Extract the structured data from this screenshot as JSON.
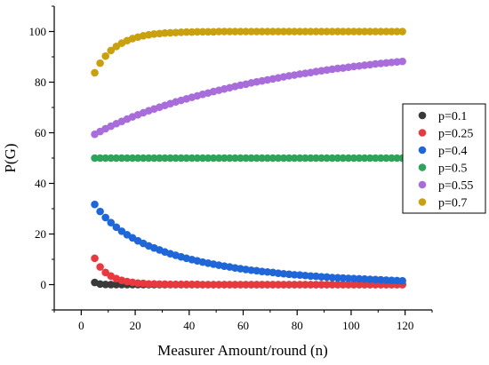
{
  "chart_data": {
    "type": "scatter",
    "title": "",
    "xlabel": "Measurer Amount/round (n)",
    "ylabel": "P(G)",
    "xlim": [
      -10,
      130
    ],
    "ylim": [
      -10,
      110
    ],
    "xticks": [
      "0",
      "20",
      "40",
      "60",
      "80",
      "100",
      "120"
    ],
    "yticks": [
      "0",
      "20",
      "40",
      "60",
      "80",
      "100"
    ],
    "legend_position": "right",
    "grid": false,
    "x_start": 5,
    "x_end": 119,
    "x_step": 2,
    "series": [
      {
        "name": "p=0.1",
        "color": "#3a3a3a",
        "values": [
          0.86,
          0.23,
          0.06,
          0.02,
          0.0,
          0.0,
          0.0,
          0.0,
          0.0,
          0.0,
          0.0,
          0.0,
          0.0,
          0.0,
          0.0,
          0.0,
          0.0,
          0.0,
          0.0,
          0.0,
          0.0,
          0.0,
          0.0,
          0.0,
          0.0,
          0.0,
          0.0,
          0.0,
          0.0,
          0.0,
          0.0,
          0.0,
          0.0,
          0.0,
          0.0,
          0.0,
          0.0,
          0.0,
          0.0,
          0.0,
          0.0,
          0.0,
          0.0,
          0.0,
          0.0,
          0.0,
          0.0,
          0.0,
          0.0,
          0.0,
          0.0,
          0.0,
          0.0,
          0.0,
          0.0,
          0.0,
          0.0,
          0.0
        ]
      },
      {
        "name": "p=0.25",
        "color": "#e8393f",
        "values": [
          10.4,
          7.0,
          4.8,
          3.4,
          2.4,
          1.7,
          1.2,
          0.9,
          0.6,
          0.5,
          0.3,
          0.3,
          0.2,
          0.2,
          0.1,
          0.1,
          0.1,
          0.1,
          0.1,
          0.1,
          0.0,
          0.0,
          0.0,
          0.0,
          0.0,
          0.0,
          0.0,
          0.0,
          0.0,
          0.0,
          0.0,
          0.0,
          0.0,
          0.0,
          0.0,
          0.0,
          0.0,
          0.0,
          0.0,
          0.0,
          0.0,
          0.0,
          0.0,
          0.0,
          0.0,
          0.0,
          0.0,
          0.0,
          0.0,
          0.0,
          0.0,
          0.0,
          0.0,
          0.0,
          0.0,
          0.0,
          0.0,
          0.0
        ]
      },
      {
        "name": "p=0.4",
        "color": "#1f66d8",
        "values": [
          31.7,
          28.9,
          26.5,
          24.5,
          22.7,
          21.1,
          19.7,
          18.5,
          17.3,
          16.3,
          15.3,
          14.5,
          13.7,
          12.9,
          12.2,
          11.6,
          11.0,
          10.4,
          9.9,
          9.4,
          8.9,
          8.5,
          8.1,
          7.7,
          7.3,
          7.0,
          6.6,
          6.3,
          6.0,
          5.7,
          5.5,
          5.2,
          5.0,
          4.8,
          4.5,
          4.3,
          4.1,
          3.9,
          3.8,
          3.6,
          3.4,
          3.3,
          3.1,
          3.0,
          2.8,
          2.7,
          2.6,
          2.5,
          2.4,
          2.3,
          2.2,
          2.1,
          2.0,
          1.9,
          1.8,
          1.7,
          1.6,
          1.5
        ]
      },
      {
        "name": "p=0.5",
        "color": "#2ea35a",
        "values": [
          50,
          50,
          50,
          50,
          50,
          50,
          50,
          50,
          50,
          50,
          50,
          50,
          50,
          50,
          50,
          50,
          50,
          50,
          50,
          50,
          50,
          50,
          50,
          50,
          50,
          50,
          50,
          50,
          50,
          50,
          50,
          50,
          50,
          50,
          50,
          50,
          50,
          50,
          50,
          50,
          50,
          50,
          50,
          50,
          50,
          50,
          50,
          50,
          50,
          50,
          50,
          50,
          50,
          50,
          50,
          50,
          50,
          50
        ]
      },
      {
        "name": "p=0.55",
        "color": "#a96ddb",
        "values": [
          59.4,
          60.5,
          61.6,
          62.6,
          63.6,
          64.5,
          65.4,
          66.3,
          67.1,
          67.9,
          68.7,
          69.4,
          70.1,
          70.8,
          71.5,
          72.2,
          72.8,
          73.4,
          74.0,
          74.6,
          75.2,
          75.7,
          76.3,
          76.8,
          77.3,
          77.8,
          78.3,
          78.8,
          79.2,
          79.7,
          80.1,
          80.5,
          80.9,
          81.3,
          81.7,
          82.1,
          82.5,
          82.8,
          83.2,
          83.5,
          83.8,
          84.2,
          84.5,
          84.8,
          85.1,
          85.4,
          85.6,
          85.9,
          86.2,
          86.4,
          86.7,
          86.9,
          87.2,
          87.4,
          87.6,
          87.8,
          88.0,
          88.2
        ]
      },
      {
        "name": "p=0.7",
        "color": "#c9a00e",
        "values": [
          83.7,
          87.5,
          90.3,
          92.5,
          94.1,
          95.4,
          96.4,
          97.2,
          97.8,
          98.3,
          98.7,
          99.0,
          99.2,
          99.4,
          99.5,
          99.6,
          99.7,
          99.8,
          99.8,
          99.9,
          99.9,
          99.9,
          99.9,
          100.0,
          100.0,
          100.0,
          100.0,
          100.0,
          100.0,
          100.0,
          100.0,
          100.0,
          100.0,
          100.0,
          100.0,
          100.0,
          100.0,
          100.0,
          100.0,
          100.0,
          100.0,
          100.0,
          100.0,
          100.0,
          100.0,
          100.0,
          100.0,
          100.0,
          100.0,
          100.0,
          100.0,
          100.0,
          100.0,
          100.0,
          100.0,
          100.0,
          100.0,
          100.0
        ]
      }
    ]
  }
}
